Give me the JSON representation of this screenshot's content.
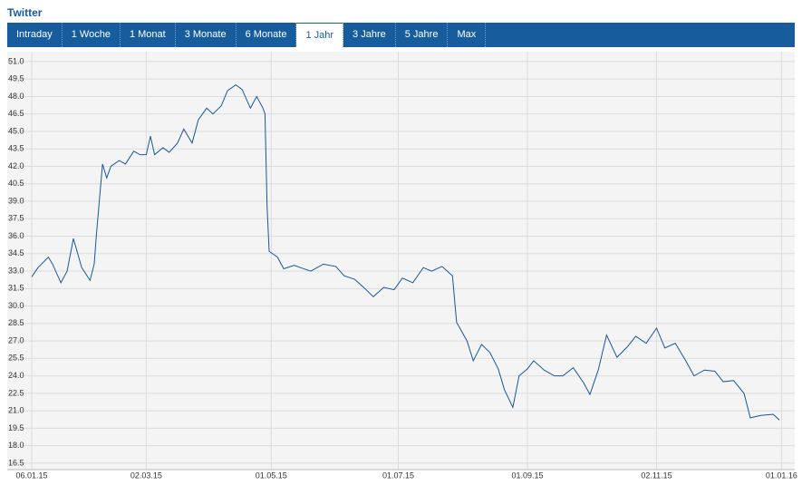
{
  "tabs": [
    {
      "label": "Intraday",
      "active": false
    },
    {
      "label": "1 Woche",
      "active": false
    },
    {
      "label": "1 Monat",
      "active": false
    },
    {
      "label": "3 Monate",
      "active": false
    },
    {
      "label": "6 Monate",
      "active": false
    },
    {
      "label": "1 Jahr",
      "active": true
    },
    {
      "label": "3 Jahre",
      "active": false
    },
    {
      "label": "5 Jahre",
      "active": false
    },
    {
      "label": "Max",
      "active": false
    }
  ],
  "chart_data": {
    "type": "line",
    "title": "Twitter",
    "color": "#1a5696",
    "grid": true,
    "xlim": [
      "2015-01-06",
      "2016-01-03"
    ],
    "xticks": [
      {
        "value": "2015-01-06",
        "label": "06.01.15"
      },
      {
        "value": "2015-03-02",
        "label": "02.03.15"
      },
      {
        "value": "2015-05-01",
        "label": "01.05.15"
      },
      {
        "value": "2015-07-01",
        "label": "01.07.15"
      },
      {
        "value": "2015-09-01",
        "label": "01.09.15"
      },
      {
        "value": "2015-11-02",
        "label": "02.11.15"
      },
      {
        "value": "2016-01-01",
        "label": "01.01.16"
      }
    ],
    "ylim": [
      15.95,
      51.85
    ],
    "yticks": [
      16.5,
      {
        "value": 18,
        "label": "18.0"
      },
      19.5,
      {
        "value": 21,
        "label": "21.0"
      },
      22.5,
      {
        "value": 24,
        "label": "24.0"
      },
      25.5,
      {
        "value": 27,
        "label": "27.0"
      },
      28.5,
      {
        "value": 30,
        "label": "30.0"
      },
      31.5,
      {
        "value": 33,
        "label": "33.0"
      },
      34.5,
      {
        "value": 36,
        "label": "36.0"
      },
      37.5,
      {
        "value": 39,
        "label": "39.0"
      },
      40.5,
      {
        "value": 42,
        "label": "42.0"
      },
      43.5,
      {
        "value": 45,
        "label": "45.0"
      },
      46.5,
      {
        "value": 48,
        "label": "48.0"
      },
      49.5,
      {
        "value": 51,
        "label": "51.0"
      }
    ],
    "x": [
      "2015-01-06",
      "2015-01-09",
      "2015-01-14",
      "2015-01-16",
      "2015-01-20",
      "2015-01-23",
      "2015-01-26",
      "2015-01-30",
      "2015-02-03",
      "2015-02-05",
      "2015-02-06",
      "2015-02-09",
      "2015-02-11",
      "2015-02-13",
      "2015-02-17",
      "2015-02-20",
      "2015-02-24",
      "2015-02-27",
      "2015-03-02",
      "2015-03-04",
      "2015-03-06",
      "2015-03-10",
      "2015-03-13",
      "2015-03-17",
      "2015-03-20",
      "2015-03-24",
      "2015-03-27",
      "2015-03-31",
      "2015-04-03",
      "2015-04-07",
      "2015-04-10",
      "2015-04-14",
      "2015-04-17",
      "2015-04-21",
      "2015-04-24",
      "2015-04-27",
      "2015-04-28",
      "2015-04-29",
      "2015-04-30",
      "2015-05-04",
      "2015-05-07",
      "2015-05-12",
      "2015-05-15",
      "2015-05-20",
      "2015-05-26",
      "2015-06-01",
      "2015-06-05",
      "2015-06-10",
      "2015-06-15",
      "2015-06-19",
      "2015-06-24",
      "2015-06-29",
      "2015-07-03",
      "2015-07-08",
      "2015-07-13",
      "2015-07-17",
      "2015-07-22",
      "2015-07-27",
      "2015-07-29",
      "2015-08-03",
      "2015-08-06",
      "2015-08-10",
      "2015-08-14",
      "2015-08-18",
      "2015-08-21",
      "2015-08-25",
      "2015-08-28",
      "2015-09-01",
      "2015-09-04",
      "2015-09-09",
      "2015-09-14",
      "2015-09-18",
      "2015-09-23",
      "2015-09-28",
      "2015-10-01",
      "2015-10-05",
      "2015-10-09",
      "2015-10-14",
      "2015-10-19",
      "2015-10-23",
      "2015-10-28",
      "2015-11-02",
      "2015-11-06",
      "2015-11-11",
      "2015-11-16",
      "2015-11-20",
      "2015-11-25",
      "2015-11-30",
      "2015-12-04",
      "2015-12-09",
      "2015-12-14",
      "2015-12-17",
      "2015-12-22",
      "2015-12-28",
      "2015-12-31"
    ],
    "values": [
      32.5,
      33.3,
      34.2,
      33.6,
      32.0,
      33.0,
      35.8,
      33.3,
      32.2,
      33.6,
      36.0,
      42.2,
      41.0,
      42.0,
      42.5,
      42.2,
      43.3,
      43.0,
      43.0,
      44.6,
      43.0,
      43.6,
      43.2,
      44.0,
      45.2,
      44.0,
      46.0,
      47.0,
      46.5,
      47.2,
      48.5,
      49.0,
      48.6,
      47.0,
      48.0,
      47.0,
      46.5,
      38.6,
      34.7,
      34.2,
      33.2,
      33.5,
      33.3,
      33.0,
      33.6,
      33.4,
      32.6,
      32.3,
      31.5,
      30.8,
      31.6,
      31.4,
      32.4,
      32.0,
      33.3,
      33.0,
      33.4,
      32.6,
      28.6,
      27.0,
      25.3,
      26.7,
      26.0,
      24.6,
      22.8,
      21.3,
      24.0,
      24.6,
      25.3,
      24.5,
      24.0,
      24.0,
      24.7,
      23.4,
      22.4,
      24.5,
      27.5,
      25.6,
      26.5,
      27.4,
      26.8,
      28.1,
      26.4,
      26.8,
      25.3,
      24.0,
      24.5,
      24.4,
      23.5,
      23.6,
      22.5,
      20.4,
      20.6,
      20.7,
      20.2
    ]
  }
}
